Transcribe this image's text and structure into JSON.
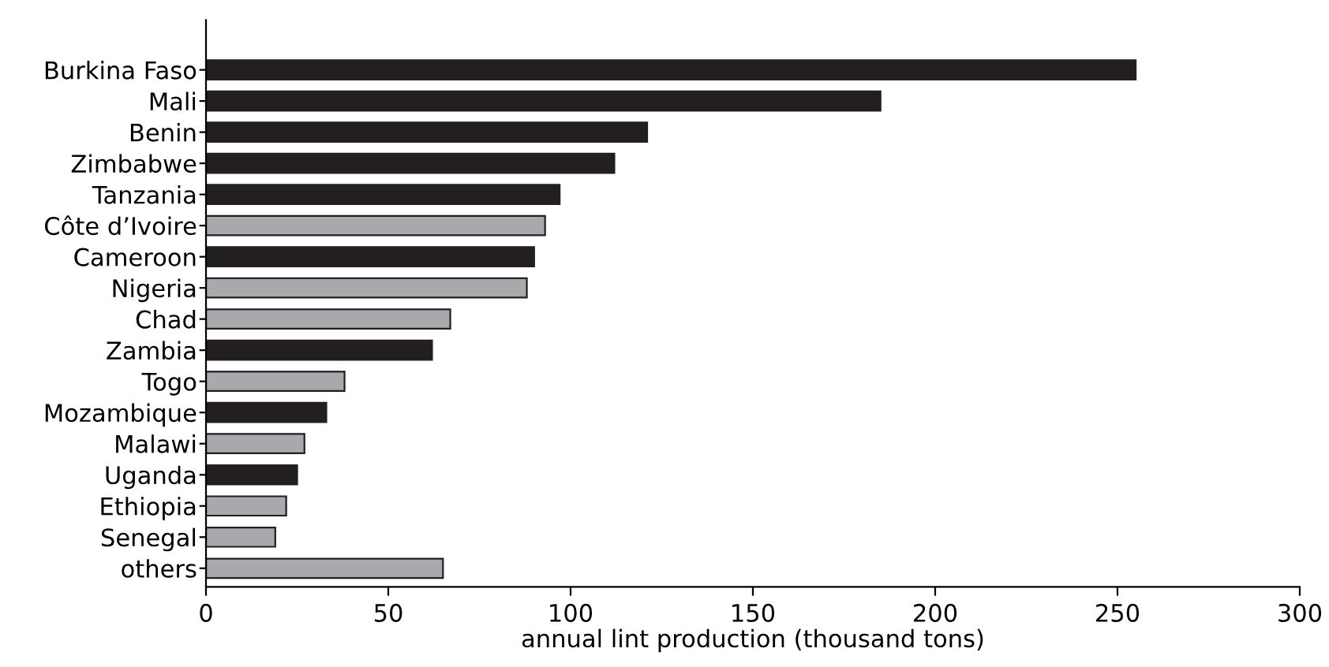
{
  "chart_data": {
    "type": "bar",
    "orientation": "horizontal",
    "xlabel": "annual lint production (thousand tons)",
    "categories": [
      "Burkina Faso",
      "Mali",
      "Benin",
      "Zimbabwe",
      "Tanzania",
      "Côte d’Ivoire",
      "Cameroon",
      "Nigeria",
      "Chad",
      "Zambia",
      "Togo",
      "Mozambique",
      "Malawi",
      "Uganda",
      "Ethiopia",
      "Senegal",
      "others"
    ],
    "values": [
      255,
      185,
      121,
      112,
      97,
      93,
      90,
      88,
      67,
      62,
      38,
      33,
      27,
      25,
      22,
      19,
      65
    ],
    "colors": [
      "#231f20",
      "#231f20",
      "#231f20",
      "#231f20",
      "#231f20",
      "#a7a9ac",
      "#231f20",
      "#a7a9ac",
      "#a7a9ac",
      "#231f20",
      "#a7a9ac",
      "#231f20",
      "#a7a9ac",
      "#231f20",
      "#a7a9ac",
      "#a7a9ac",
      "#a7a9ac"
    ],
    "xlim": [
      0,
      300
    ],
    "xticks": [
      0,
      50,
      100,
      150,
      200,
      250,
      300
    ],
    "grid": false,
    "legend": false
  }
}
